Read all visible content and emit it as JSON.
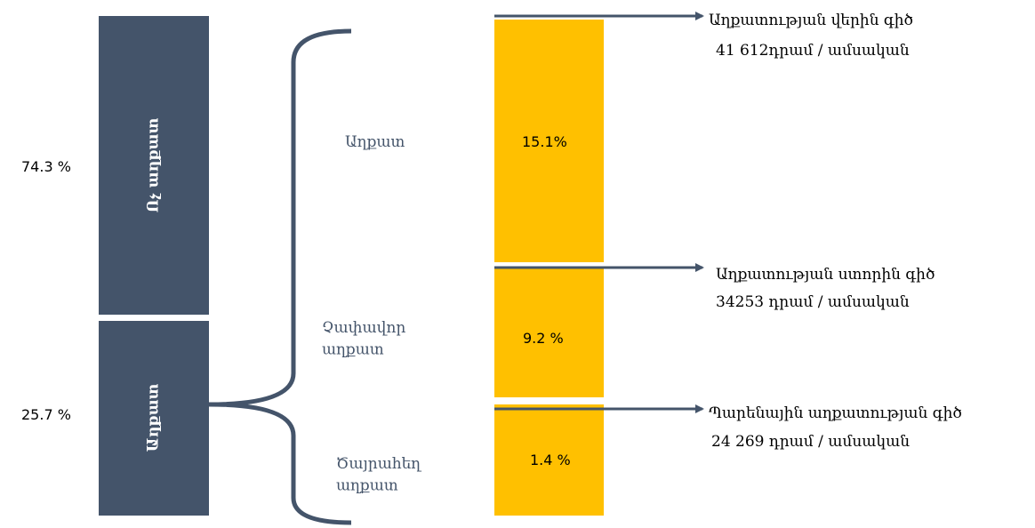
{
  "groups": [
    {
      "share": "74.3 %",
      "label": "Ոչ աղքատ"
    },
    {
      "share": "25.7 %",
      "label": "Աղքատ"
    }
  ],
  "levels": [
    {
      "label": "Աղքատ",
      "share": "15.1%"
    },
    {
      "label": "Չափավոր աղքատ",
      "share": "9.2 %"
    },
    {
      "label": "Ծայրահեղ աղքատ",
      "share": "1.4 %"
    }
  ],
  "lines": [
    {
      "name": "Աղքատության վերին գիծ",
      "amount": "41 612դրամ / ամսական"
    },
    {
      "name": "Աղքատության ստորին գիծ",
      "amount": "34253 դրամ / ամսական"
    },
    {
      "name": "Պարենային աղքատության գիծ",
      "amount": "24 269 դրամ / ամսական"
    }
  ]
}
